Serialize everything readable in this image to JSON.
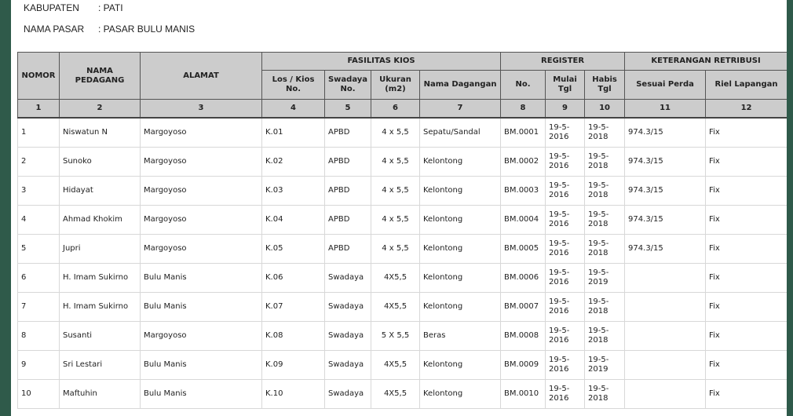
{
  "kabupaten": {
    "label": "KABUPATEN",
    "value": ": PATI"
  },
  "pasar": {
    "label": "NAMA PASAR",
    "value": ": PASAR BULU MANIS"
  },
  "headers": {
    "nomor": "NOMOR",
    "nama": "NAMA PEDAGANG",
    "alamat": "ALAMAT",
    "fasilitas": "FASILITAS KIOS",
    "register": "REGISTER",
    "keterangan": "KETERANGAN RETRIBUSI",
    "los_a": "Los / Kios",
    "los_b": "No.",
    "swadaya_a": "Swadaya",
    "swadaya_b": "No.",
    "ukuran_a": "Ukuran",
    "ukuran_b": "(m2)",
    "dagangan": "Nama Dagangan",
    "no": "No.",
    "mulai_a": "Mulai",
    "mulai_b": "Tgl",
    "habis_a": "Habis",
    "habis_b": "Tgl",
    "perda": "Sesuai Perda",
    "riel": "Riel Lapangan"
  },
  "col_numbers": [
    "1",
    "2",
    "3",
    "4",
    "5",
    "6",
    "7",
    "8",
    "9",
    "10",
    "11",
    "12"
  ],
  "rows": [
    {
      "no": "1",
      "nama": "Niswatun N",
      "alamat": "Margoyoso",
      "los": "K.01",
      "swadaya": "APBD",
      "ukuran": "4 x 5,5",
      "dagangan": "Sepatu/Sandal",
      "reg": "BM.0001",
      "mulai1": "19-5-",
      "mulai2": "2016",
      "habis1": "19-5-",
      "habis2": "2018",
      "perda": "974.3/15",
      "riel": "Fix"
    },
    {
      "no": "2",
      "nama": "Sunoko",
      "alamat": "Margoyoso",
      "los": "K.02",
      "swadaya": "APBD",
      "ukuran": "4 x 5,5",
      "dagangan": "Kelontong",
      "reg": "BM.0002",
      "mulai1": "19-5-",
      "mulai2": "2016",
      "habis1": "19-5-",
      "habis2": "2018",
      "perda": "974.3/15",
      "riel": "Fix"
    },
    {
      "no": "3",
      "nama": "Hidayat",
      "alamat": "Margoyoso",
      "los": "K.03",
      "swadaya": "APBD",
      "ukuran": "4 x 5,5",
      "dagangan": "Kelontong",
      "reg": "BM.0003",
      "mulai1": "19-5-",
      "mulai2": "2016",
      "habis1": "19-5-",
      "habis2": "2018",
      "perda": "974.3/15",
      "riel": "Fix"
    },
    {
      "no": "4",
      "nama": "Ahmad Khokim",
      "alamat": "Margoyoso",
      "los": "K.04",
      "swadaya": "APBD",
      "ukuran": "4 x 5,5",
      "dagangan": "Kelontong",
      "reg": "BM.0004",
      "mulai1": "19-5-",
      "mulai2": "2016",
      "habis1": "19-5-",
      "habis2": "2018",
      "perda": "974.3/15",
      "riel": "Fix"
    },
    {
      "no": "5",
      "nama": "Jupri",
      "alamat": "Margoyoso",
      "los": "K.05",
      "swadaya": "APBD",
      "ukuran": "4 x 5,5",
      "dagangan": "Kelontong",
      "reg": "BM.0005",
      "mulai1": "19-5-",
      "mulai2": "2016",
      "habis1": "19-5-",
      "habis2": "2018",
      "perda": "974.3/15",
      "riel": "Fix"
    },
    {
      "no": "6",
      "nama": "H. Imam Sukirno",
      "alamat": "Bulu Manis",
      "los": "K.06",
      "swadaya": "Swadaya",
      "ukuran": "4X5,5",
      "dagangan": "Kelontong",
      "reg": "BM.0006",
      "mulai1": "19-5-",
      "mulai2": "2016",
      "habis1": "19-5-",
      "habis2": "2019",
      "perda": "",
      "riel": "Fix"
    },
    {
      "no": "7",
      "nama": "H. Imam Sukirno",
      "alamat": "Bulu Manis",
      "los": "K.07",
      "swadaya": "Swadaya",
      "ukuran": "4X5,5",
      "dagangan": "Kelontong",
      "reg": "BM.0007",
      "mulai1": "19-5-",
      "mulai2": "2016",
      "habis1": "19-5-",
      "habis2": "2018",
      "perda": "",
      "riel": "Fix"
    },
    {
      "no": "8",
      "nama": "Susanti",
      "alamat": "Margoyoso",
      "los": "K.08",
      "swadaya": "Swadaya",
      "ukuran": "5 X 5,5",
      "dagangan": "Beras",
      "reg": "BM.0008",
      "mulai1": "19-5-",
      "mulai2": "2016",
      "habis1": "19-5-",
      "habis2": "2018",
      "perda": "",
      "riel": "Fix"
    },
    {
      "no": "9",
      "nama": "Sri Lestari",
      "alamat": "Bulu Manis",
      "los": "K.09",
      "swadaya": "Swadaya",
      "ukuran": "4X5,5",
      "dagangan": "Kelontong",
      "reg": "BM.0009",
      "mulai1": "19-5-",
      "mulai2": "2016",
      "habis1": "19-5-",
      "habis2": "2019",
      "perda": "",
      "riel": "Fix"
    },
    {
      "no": "10",
      "nama": "Maftuhin",
      "alamat": "Bulu Manis",
      "los": "K.10",
      "swadaya": "Swadaya",
      "ukuran": "4X5,5",
      "dagangan": "Kelontong",
      "reg": "BM.0010",
      "mulai1": "19-5-",
      "mulai2": "2016",
      "habis1": "19-5-",
      "habis2": "2018",
      "perda": "",
      "riel": "Fix"
    }
  ]
}
